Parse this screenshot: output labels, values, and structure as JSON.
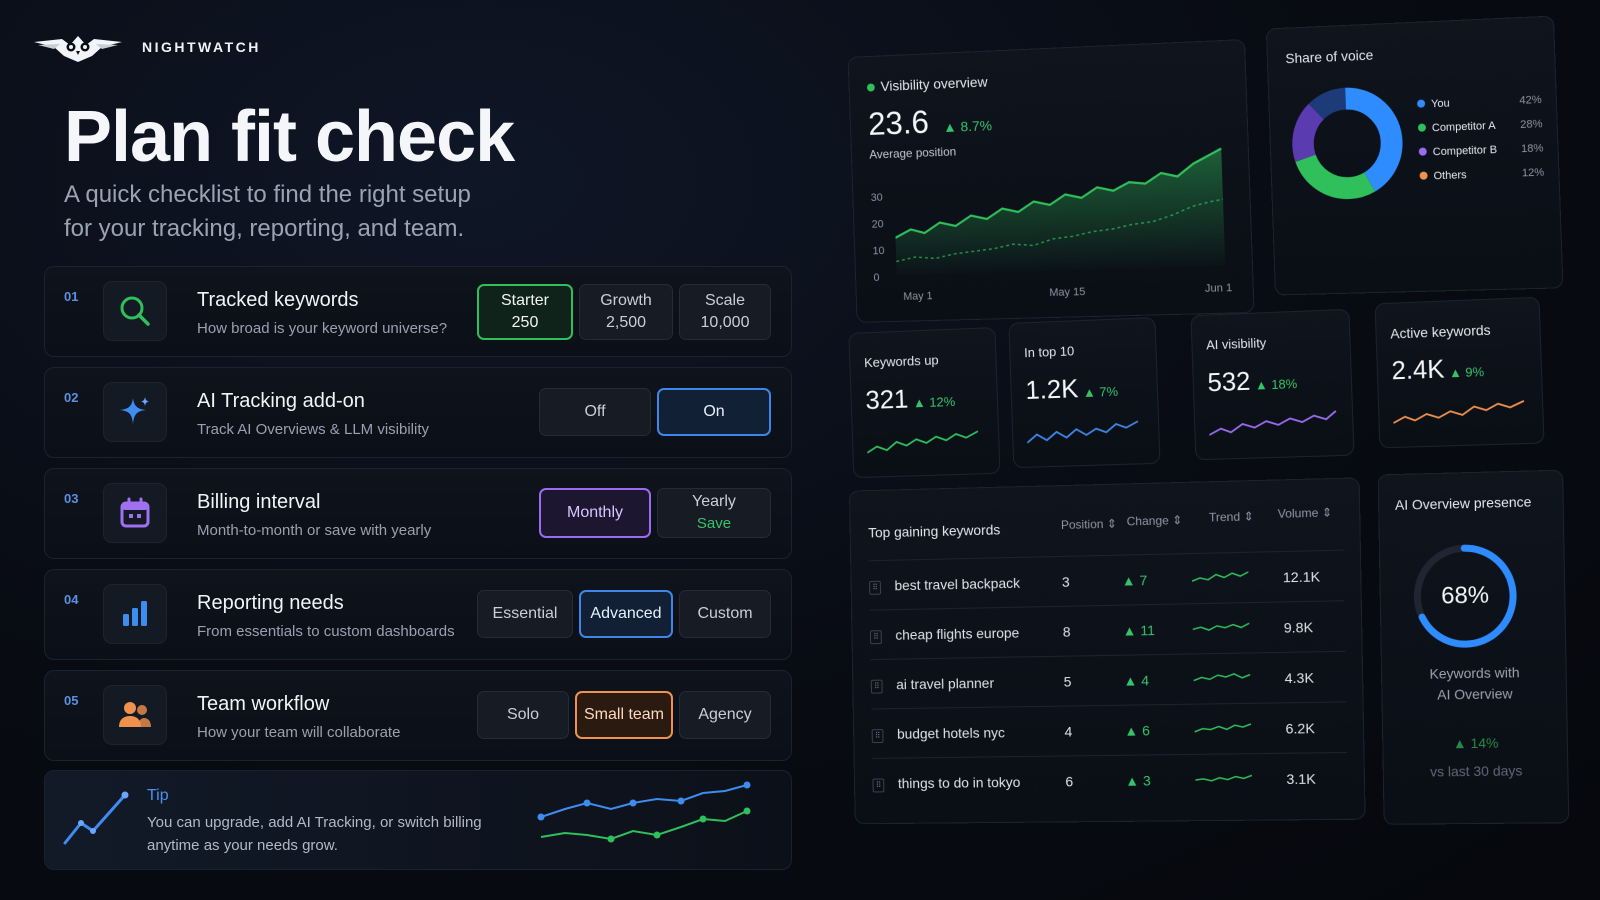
{
  "brand": {
    "name": "NIGHTWATCH"
  },
  "hero": {
    "title": "Plan fit check",
    "subtitle_line1": "A quick checklist to find the right setup",
    "subtitle_line2": "for your tracking, reporting, and team."
  },
  "steps": [
    {
      "num": "01",
      "title": "Tracked keywords",
      "desc": "How broad is your keyword universe?",
      "icon": "search-icon",
      "options": [
        {
          "label": "Starter",
          "sub": "250",
          "selected": true
        },
        {
          "label": "Growth",
          "sub": "2,500"
        },
        {
          "label": "Scale",
          "sub": "10,000"
        }
      ]
    },
    {
      "num": "02",
      "title": "AI Tracking add-on",
      "desc": "Track AI Overviews & LLM visibility",
      "icon": "sparkle-icon",
      "options": [
        {
          "label": "Off"
        },
        {
          "label": "On",
          "selected": true
        }
      ]
    },
    {
      "num": "03",
      "title": "Billing interval",
      "desc": "Month-to-month or save with yearly",
      "icon": "calendar-icon",
      "options": [
        {
          "label": "Monthly",
          "selected": true
        },
        {
          "label": "Yearly",
          "sub": "Save"
        }
      ]
    },
    {
      "num": "04",
      "title": "Reporting needs",
      "desc": "From essentials to custom dashboards",
      "icon": "bar-chart-icon",
      "options": [
        {
          "label": "Essential"
        },
        {
          "label": "Advanced",
          "selected": true
        },
        {
          "label": "Custom"
        }
      ]
    },
    {
      "num": "05",
      "title": "Team workflow",
      "desc": "How your team will collaborate",
      "icon": "team-icon",
      "options": [
        {
          "label": "Solo"
        },
        {
          "label": "Small team",
          "selected": true
        },
        {
          "label": "Agency"
        }
      ]
    }
  ],
  "tip": {
    "title": "Tip",
    "text": "You can upgrade, add AI Tracking, or switch billing anytime as your needs grow."
  },
  "visibility": {
    "title": "Visibility overview",
    "value": "23.6",
    "delta": "▲ 8.7%",
    "label": "Average position",
    "y_ticks": [
      "30",
      "20",
      "10",
      "0"
    ],
    "x_ticks": [
      "May 1",
      "May 15",
      "Jun 1"
    ]
  },
  "share_of_voice": {
    "title": "Share of voice",
    "items": [
      {
        "label": "You",
        "value": "42%",
        "color": "#2f8cff"
      },
      {
        "label": "Competitor A",
        "value": "28%",
        "color": "#2fbf5b"
      },
      {
        "label": "Competitor B",
        "value": "18%",
        "color": "#7c4ddf"
      },
      {
        "label": "Others",
        "value": "12%",
        "color": "#f0914d"
      }
    ]
  },
  "stats": [
    {
      "title": "Keywords up",
      "value": "321",
      "delta": "▲ 12%",
      "color": "#2fbf5b"
    },
    {
      "title": "In top 10",
      "value": "1.2K",
      "delta": "▲ 7%",
      "color": "#3f86e8"
    },
    {
      "title": "AI visibility",
      "value": "532",
      "delta": "▲ 18%",
      "color": "#9b6cf0"
    },
    {
      "title": "Active keywords",
      "value": "2.4K",
      "delta": "▲ 9%",
      "color": "#f0914d"
    }
  ],
  "keywords_table": {
    "title": "Top gaining keywords",
    "columns": [
      "Position",
      "Change",
      "Trend",
      "Volume"
    ],
    "rows": [
      {
        "keyword": "best travel backpack",
        "position": "3",
        "change": "▲ 7",
        "volume": "12.1K"
      },
      {
        "keyword": "cheap flights europe",
        "position": "8",
        "change": "▲ 11",
        "volume": "9.8K"
      },
      {
        "keyword": "ai travel planner",
        "position": "5",
        "change": "▲ 4",
        "volume": "4.3K"
      },
      {
        "keyword": "budget hotels nyc",
        "position": "4",
        "change": "▲ 6",
        "volume": "6.2K"
      },
      {
        "keyword": "things to do in tokyo",
        "position": "6",
        "change": "▲ 3",
        "volume": "3.1K"
      }
    ]
  },
  "ai_overview": {
    "title": "AI Overview presence",
    "value": "68%",
    "fraction": 0.68,
    "label_line1": "Keywords with",
    "label_line2": "AI Overview",
    "delta": "▲ 14%",
    "compare": "vs last 30 days"
  }
}
